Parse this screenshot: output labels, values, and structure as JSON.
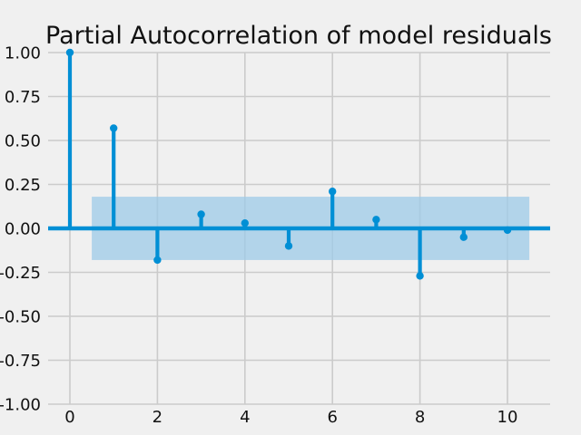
{
  "chart_data": {
    "type": "stem",
    "title": "Partial Autocorrelation of model residuals",
    "xlabel": "",
    "ylabel": "",
    "xlim": [
      -0.5,
      10.9
    ],
    "ylim": [
      -1.0,
      1.0
    ],
    "x_ticks": [
      "0",
      "2",
      "4",
      "6",
      "8",
      "10"
    ],
    "y_ticks": [
      "1.00",
      "0.75",
      "0.50",
      "0.25",
      "0.00",
      "-0.25",
      "-0.50",
      "-0.75",
      "-1.00"
    ],
    "grid": true,
    "lags": [
      0,
      1,
      2,
      3,
      4,
      5,
      6,
      7,
      8,
      9,
      10
    ],
    "values": [
      1.0,
      0.57,
      -0.18,
      0.08,
      0.03,
      -0.1,
      0.21,
      0.05,
      -0.27,
      -0.05,
      -0.01
    ],
    "confidence_band": {
      "x_range": [
        0.5,
        10.5
      ],
      "lower": -0.18,
      "upper": 0.18
    },
    "colors": {
      "stem": "#008fd5",
      "band": "#9ecbe8",
      "grid": "#cbcbcb",
      "background": "#f0f0f0"
    }
  }
}
